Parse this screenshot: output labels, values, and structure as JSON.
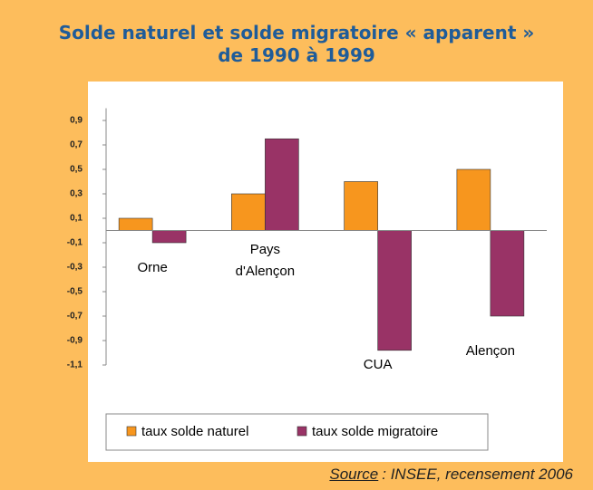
{
  "chart_data": {
    "type": "bar",
    "title": [
      "Solde naturel et solde migratoire « apparent »",
      "de 1990 à 1999"
    ],
    "categories": [
      "Orne",
      "Pays d'Alençon",
      "CUA",
      "Alençon"
    ],
    "series": [
      {
        "name": "taux solde naturel",
        "color": "#f7961e",
        "values": [
          0.1,
          0.3,
          0.4,
          0.5
        ]
      },
      {
        "name": "taux solde migratoire",
        "color": "#993366",
        "values": [
          -0.1,
          0.75,
          -0.98,
          -0.7
        ]
      }
    ],
    "ylim": [
      -1.1,
      1.0
    ],
    "yticks": [
      {
        "value": 0.9,
        "label": "0,9"
      },
      {
        "value": 0.7,
        "label": "0,7"
      },
      {
        "value": 0.5,
        "label": "0,5"
      },
      {
        "value": 0.3,
        "label": "0,3"
      },
      {
        "value": 0.1,
        "label": "0,1"
      },
      {
        "value": -0.1,
        "label": "-0,1"
      },
      {
        "value": -0.3,
        "label": "-0,3"
      },
      {
        "value": -0.5,
        "label": "-0,5"
      },
      {
        "value": -0.7,
        "label": "-0,7"
      },
      {
        "value": -0.9,
        "label": "-0,9"
      },
      {
        "value": -1.1,
        "label": "-1,1"
      }
    ],
    "legend": "bottom",
    "source": {
      "label": "Source",
      "text": ": INSEE, recensement 2006"
    }
  }
}
